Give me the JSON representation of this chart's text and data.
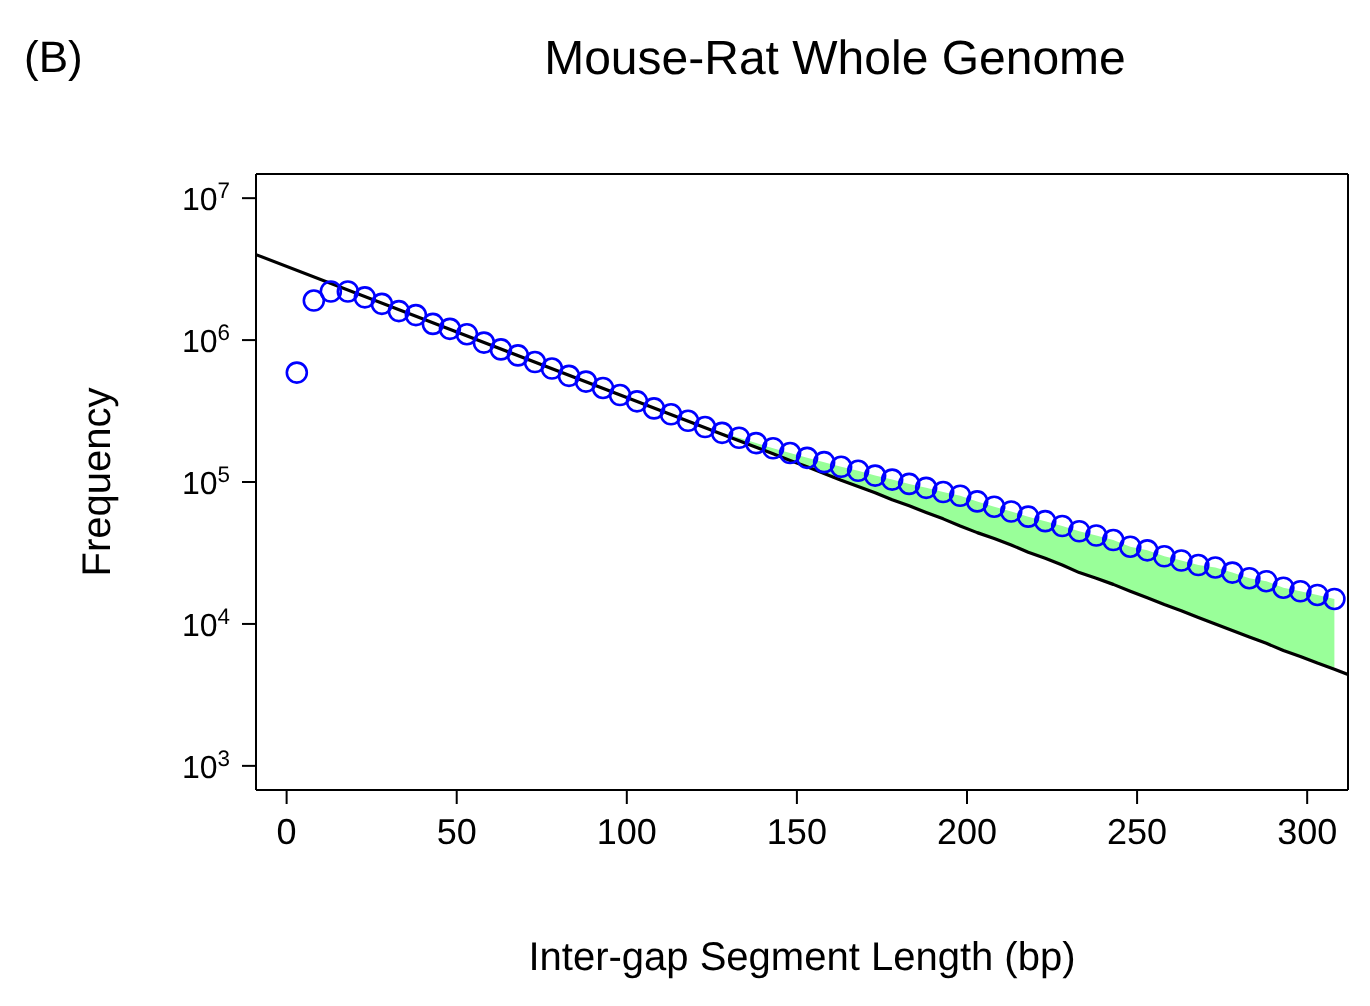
{
  "chart_data": {
    "type": "scatter",
    "title": "Mouse-Rat Whole Genome",
    "xlabel": "Inter-gap Segment Length (bp)",
    "ylabel": "Frequency",
    "annotations": [
      "(B)"
    ],
    "log": "y",
    "xlim": [
      -9,
      312
    ],
    "xticks": [
      0,
      50,
      100,
      150,
      200,
      250,
      300
    ],
    "ylim": [
      676,
      14800000
    ],
    "yticks": [
      {
        "value": 1000,
        "label": "10$^{3}$"
      },
      {
        "value": 10000,
        "label": "10$^{4}$"
      },
      {
        "value": 100000,
        "label": "10$^{5}$"
      },
      {
        "value": 1000000,
        "label": "10$^{6}$"
      },
      {
        "value": 10000000,
        "label": "10$^{7}$"
      }
    ],
    "series": [
      {
        "color": "#0000ff",
        "marker": "circle",
        "x": [
          3,
          8,
          13,
          18,
          23,
          28,
          33,
          38,
          43,
          48,
          53,
          58,
          63,
          68,
          73,
          78,
          83,
          88,
          93,
          98,
          103,
          108,
          113,
          118,
          123,
          128,
          133,
          138,
          143,
          148,
          153,
          158,
          163,
          168,
          173,
          178,
          183,
          188,
          193,
          198,
          203,
          208,
          213,
          218,
          223,
          228,
          233,
          238,
          243,
          248,
          253,
          258,
          263,
          268,
          273,
          278,
          283,
          288,
          293,
          298,
          303,
          308
        ],
        "values": [
          590000,
          1900000,
          2200000,
          2200000,
          2000000,
          1800000,
          1600000,
          1500000,
          1300000,
          1200000,
          1100000,
          960000,
          860000,
          780000,
          700000,
          630000,
          560000,
          510000,
          460000,
          410000,
          370000,
          330000,
          300000,
          270000,
          244000,
          222000,
          205000,
          188000,
          173000,
          160000,
          148000,
          138000,
          128000,
          120000,
          111000,
          104000,
          97000,
          91000,
          85000,
          80000,
          73000,
          67000,
          62000,
          57000,
          53000,
          49000,
          45000,
          42000,
          39000,
          35000,
          33000,
          30000,
          28000,
          26000,
          25000,
          23000,
          21000,
          20000,
          18000,
          17000,
          16000,
          15000
        ]
      },
      {
        "type": "line",
        "color": "#000000",
        "marker": "none",
        "x": [
          -9,
          128,
          133,
          138,
          143,
          148,
          153,
          158,
          163,
          168,
          173,
          178,
          183,
          188,
          193,
          198,
          203,
          208,
          213,
          218,
          223,
          228,
          233,
          238,
          243,
          248,
          253,
          258,
          263,
          268,
          273,
          278,
          283,
          288,
          293,
          298,
          303,
          308,
          312
        ],
        "values": [
          4000000,
          217000,
          195000,
          176000,
          158000,
          142000,
          128000,
          115000,
          103000,
          93000,
          84000,
          75000,
          68000,
          61000,
          55000,
          49000,
          44000,
          40000,
          36000,
          32000,
          29000,
          26000,
          23000,
          21000,
          19000,
          17000,
          15300,
          13700,
          12400,
          11100,
          10000,
          9000,
          8100,
          7300,
          6500,
          5900,
          5300,
          4800,
          4400
        ],
        "lower": [
          null,
          217000,
          195000,
          176000,
          158000,
          142000,
          128000,
          115000,
          103000,
          93000,
          84000,
          75000,
          68000,
          61000,
          55000,
          49000,
          44000,
          40000,
          36000,
          32000,
          29000,
          26000,
          23000,
          21000,
          19000,
          17000,
          15300,
          13700,
          12400,
          11100,
          10000,
          9000,
          8100,
          7300,
          6500,
          5900,
          5300,
          4800,
          null
        ],
        "upper": [
          null,
          222000,
          205000,
          188000,
          173000,
          160000,
          148000,
          138000,
          128000,
          120000,
          111000,
          104000,
          97000,
          91000,
          85000,
          80000,
          73000,
          67000,
          62000,
          57000,
          53000,
          49000,
          45000,
          42000,
          39000,
          35000,
          33000,
          30000,
          28000,
          26000,
          25000,
          23000,
          21000,
          20000,
          18000,
          17000,
          16000,
          15000,
          null
        ]
      }
    ]
  }
}
